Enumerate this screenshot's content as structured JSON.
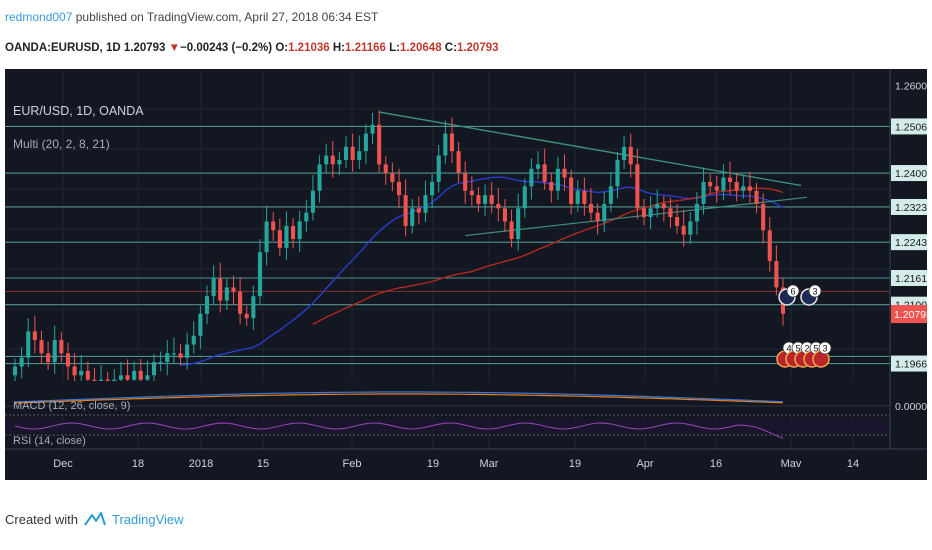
{
  "header": {
    "publisher": "redmond007",
    "publish_text": "published on TradingView.com, April 27, 2018 06:34 EST",
    "symbol": "OANDA:EURUSD, 1D",
    "last": "1.20793",
    "down_arrow": "▼",
    "change": "−0.00243 (−0.2%)",
    "o_label": "O:",
    "o_value": "1.21036",
    "h_label": "H:",
    "h_value": "1.21166",
    "l_label": "L:",
    "l_value": "1.20648",
    "c_label": "C:",
    "c_value": "1.20793"
  },
  "chart_labels": {
    "title": "EUR/USD, 1D, OANDA",
    "indicator": "Multi (20, 2, 8, 21)",
    "macd": "MACD (12, 26, close, 9)",
    "rsi": "RSI (14, close)",
    "price_badge": "1.20793",
    "macd_zero": "0.0000"
  },
  "footer": {
    "created_with": "Created with",
    "brand": "TradingView"
  },
  "colors": {
    "background": "#131722",
    "up": "#26a69a",
    "down": "#ef5350",
    "hline": "#5aa9a0",
    "price_badge": "#ef5350",
    "sma_blue": "#2a3ccc",
    "sma_red": "#b0281f",
    "rsi": "#8e44ad"
  },
  "chart_data": {
    "type": "candlestick",
    "symbol": "EUR/USD",
    "timeframe": "1D",
    "ylim": [
      1.1927,
      1.2637
    ],
    "y_ticks": [
      "1.26000",
      "1.25063",
      "1.24002",
      "1.23230",
      "1.22430",
      "1.21614",
      "1.21007",
      "1.20793",
      "1.19667"
    ],
    "x_ticks": [
      "Dec",
      "18",
      "2018",
      "15",
      "Feb",
      "19",
      "Mar",
      "19",
      "Apr",
      "16",
      "Mav",
      "14"
    ],
    "horizontal_levels": [
      1.25063,
      1.24002,
      1.2323,
      1.2243,
      1.21614,
      1.21007,
      1.1983,
      1.19667
    ],
    "current_price": 1.20793,
    "closes": [
      1.196,
      1.198,
      1.204,
      1.202,
      1.199,
      1.197,
      1.202,
      1.199,
      1.196,
      1.194,
      1.195,
      1.193,
      1.192,
      1.193,
      1.192,
      1.193,
      1.194,
      1.193,
      1.195,
      1.193,
      1.194,
      1.197,
      1.197,
      1.199,
      1.199,
      1.198,
      1.201,
      1.203,
      1.208,
      1.212,
      1.216,
      1.211,
      1.214,
      1.213,
      1.208,
      1.207,
      1.212,
      1.222,
      1.229,
      1.227,
      1.223,
      1.228,
      1.225,
      1.229,
      1.231,
      1.236,
      1.242,
      1.244,
      1.242,
      1.243,
      1.246,
      1.243,
      1.245,
      1.249,
      1.251,
      1.242,
      1.24,
      1.238,
      1.235,
      1.228,
      1.232,
      1.231,
      1.235,
      1.238,
      1.244,
      1.249,
      1.245,
      1.24,
      1.236,
      1.235,
      1.233,
      1.235,
      1.233,
      1.232,
      1.229,
      1.225,
      1.232,
      1.237,
      1.241,
      1.242,
      1.238,
      1.236,
      1.241,
      1.239,
      1.233,
      1.236,
      1.233,
      1.231,
      1.229,
      1.233,
      1.237,
      1.243,
      1.246,
      1.242,
      1.232,
      1.23,
      1.232,
      1.233,
      1.232,
      1.23,
      1.228,
      1.226,
      1.229,
      1.233,
      1.238,
      1.237,
      1.236,
      1.239,
      1.238,
      1.236,
      1.237,
      1.236,
      1.233,
      1.227,
      1.22,
      1.214,
      1.208
    ]
  }
}
